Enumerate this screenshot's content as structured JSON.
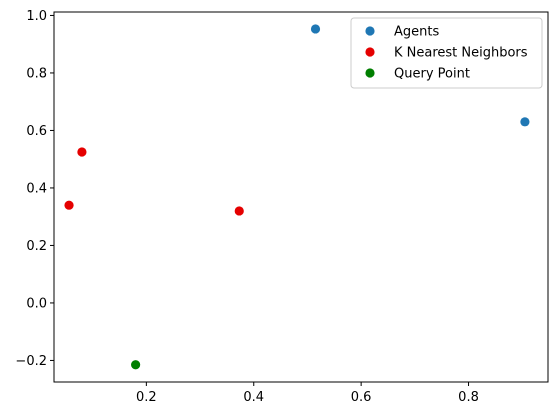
{
  "chart_data": {
    "type": "scatter",
    "title": "",
    "xlabel": "",
    "ylabel": "",
    "xlim": [
      0.028,
      0.948
    ],
    "ylim": [
      -0.275,
      1.012
    ],
    "x_ticks": [
      0.2,
      0.4,
      0.6,
      0.8
    ],
    "y_ticks": [
      -0.2,
      0.0,
      0.2,
      0.4,
      0.6,
      0.8,
      1.0
    ],
    "x_tick_labels": [
      "0.2",
      "0.4",
      "0.6",
      "0.8"
    ],
    "y_tick_labels": [
      "−0.2",
      "0.0",
      "0.2",
      "0.4",
      "0.6",
      "0.8",
      "1.0"
    ],
    "grid": false,
    "legend_position": "top-right",
    "series": [
      {
        "name": "Agents",
        "color": "#1f77b4",
        "points": [
          {
            "x": 0.515,
            "y": 0.953
          },
          {
            "x": 0.905,
            "y": 0.63
          }
        ]
      },
      {
        "name": "K Nearest Neighbors",
        "color": "#e50000",
        "points": [
          {
            "x": 0.08,
            "y": 0.525
          },
          {
            "x": 0.056,
            "y": 0.34
          },
          {
            "x": 0.373,
            "y": 0.32
          }
        ]
      },
      {
        "name": "Query Point",
        "color": "#007f00",
        "points": [
          {
            "x": 0.18,
            "y": -0.215
          }
        ]
      }
    ]
  }
}
